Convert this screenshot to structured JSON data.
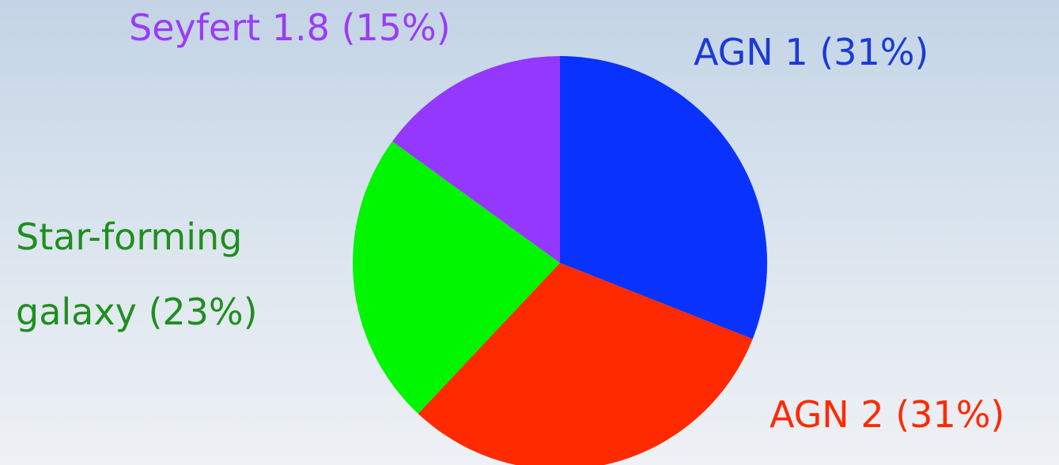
{
  "chart_data": {
    "type": "pie",
    "categories": [
      "AGN 1",
      "AGN 2",
      "Star-forming galaxy",
      "Seyfert 1.8"
    ],
    "values": [
      31,
      31,
      23,
      15
    ],
    "value_labels": [
      "(31%)",
      "(31%)",
      "(23%)",
      "(15%)"
    ],
    "colors": [
      "#0a32ff",
      "#ff2a00",
      "#00f500",
      "#9538ff"
    ],
    "label_colors": [
      "#1a3ad8",
      "#ff2a00",
      "#1f8f1f",
      "#9b3cf5"
    ]
  }
}
